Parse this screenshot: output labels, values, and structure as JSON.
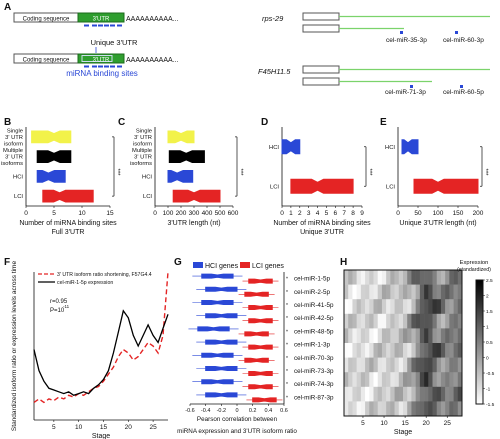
{
  "panels": {
    "A": {
      "letter": "A",
      "coding_sequence": "Coding sequence",
      "utr": "3'UTR",
      "polyA": "AAAAAAAAAA...",
      "unique_utr": "Unique 3'UTR",
      "binding_sites": "miRNA binding sites",
      "genes": [
        "rps-29",
        "F45H11.5"
      ],
      "mirnas": [
        "cel-miR-35-3p",
        "cel-miR-60-3p",
        "cel-miR-71-3p",
        "cel-miR-60-5p"
      ]
    },
    "B": {
      "letter": "B",
      "categories": [
        "Single 3' UTR isoform",
        "Multiple 3' UTR isoforms",
        "HCI",
        "LCI"
      ],
      "xticks": [
        "0",
        "5",
        "10",
        "15"
      ],
      "xlabel": "Number of miRNA binding sites",
      "xlabel2": "Full 3'UTR",
      "sig": "***"
    },
    "C": {
      "letter": "C",
      "categories": [
        "Single 3' UTR isoform",
        "Multiple 3' UTR isoforms",
        "HCI",
        "LCI"
      ],
      "xticks": [
        "0",
        "100",
        "200",
        "300",
        "400",
        "500",
        "600"
      ],
      "xlabel": "3'UTR length (nt)",
      "sig": "***"
    },
    "D": {
      "letter": "D",
      "categories": [
        "HCI",
        "LCI"
      ],
      "xticks": [
        "0",
        "1",
        "2",
        "3",
        "4",
        "5",
        "6",
        "7",
        "8",
        "9"
      ],
      "xlabel": "Number of miRNA binding sites",
      "xlabel2": "Unique 3'UTR",
      "sig": "***"
    },
    "E": {
      "letter": "E",
      "categories": [
        "HCI",
        "LCI"
      ],
      "xticks": [
        "0",
        "50",
        "100",
        "150",
        "200"
      ],
      "xlabel": "Unique 3'UTR length (nt)",
      "sig": "***"
    },
    "F": {
      "letter": "F",
      "legend1": "3' UTR isoform ratio shortening, F57G4.4",
      "legend2": "cel-miR-1-5p expression",
      "stat_r": "r=0.95",
      "stat_p": "P=10",
      "stat_p_exp": "-11",
      "ylabel": "Standardized isoform ratio or expression levels across time",
      "xlabel": "Stage",
      "xticks": [
        "5",
        "10",
        "15",
        "20",
        "25"
      ]
    },
    "G": {
      "letter": "G",
      "legend_hci": "HCI genes",
      "legend_lci": "LCI genes",
      "xlabel": "Pearson correlation between miRNA expression and 3'UTR isoform ratio",
      "xticks": [
        "-0.6",
        "-0.4",
        "-0.2",
        "0",
        "0.2",
        "0.4",
        "0.6"
      ],
      "mirnas": [
        "cel-miR-1-5p",
        "cel-miR-2-5p",
        "cel-miR-41-5p",
        "cel-miR-42-5p",
        "cel-miR-48-5p",
        "cel-miR-1-3p",
        "cel-miR-70-3p",
        "cel-miR-73-3p",
        "cel-miR-74-3p",
        "cel-miR-87-3p"
      ],
      "sig": "*"
    },
    "H": {
      "letter": "H",
      "legend_title": "Expression",
      "legend_sub": "(standardized)",
      "xlabel": "Stage",
      "xticks": [
        "5",
        "10",
        "15",
        "20",
        "25"
      ],
      "cb_ticks": [
        "2.5",
        "2",
        "1.5",
        "1",
        "0.5",
        "0",
        "-0.5",
        "-1",
        "-1.5"
      ]
    }
  },
  "chart_data": [
    {
      "panel": "B",
      "type": "box",
      "categories": [
        "Single 3' UTR isoform",
        "Multiple 3' UTR isoforms",
        "HCI",
        "LCI"
      ],
      "medians": [
        5,
        5,
        4,
        6
      ],
      "q1": [
        1,
        2,
        2,
        3
      ],
      "q3": [
        8,
        8,
        7,
        12
      ],
      "colors": [
        "#f2f24a",
        "#000000",
        "#2a48d6",
        "#e42424"
      ],
      "xlim": [
        0,
        15
      ]
    },
    {
      "panel": "C",
      "type": "box",
      "categories": [
        "Single 3' UTR isoform",
        "Multiple 3' UTR isoforms",
        "HCI",
        "LCI"
      ],
      "medians": [
        200,
        240,
        170,
        300
      ],
      "q1": [
        100,
        110,
        100,
        140
      ],
      "q3": [
        300,
        380,
        290,
        500
      ],
      "colors": [
        "#f2f24a",
        "#000000",
        "#2a48d6",
        "#e42424"
      ],
      "xlim": [
        0,
        600
      ]
    },
    {
      "panel": "D",
      "type": "box",
      "categories": [
        "HCI",
        "LCI"
      ],
      "medians": [
        1,
        4
      ],
      "q1": [
        0,
        1
      ],
      "q3": [
        2,
        8
      ],
      "colors": [
        "#2a48d6",
        "#e42424"
      ],
      "xlim": [
        0,
        9
      ]
    },
    {
      "panel": "E",
      "type": "box",
      "categories": [
        "HCI",
        "LCI"
      ],
      "medians": [
        25,
        100
      ],
      "q1": [
        10,
        40
      ],
      "q3": [
        50,
        200
      ],
      "colors": [
        "#2a48d6",
        "#e42424"
      ],
      "xlim": [
        0,
        200
      ]
    },
    {
      "panel": "F",
      "type": "line",
      "x": [
        1,
        2,
        3,
        4,
        5,
        6,
        7,
        8,
        9,
        10,
        11,
        12,
        13,
        14,
        15,
        16,
        17,
        18,
        19,
        20,
        21,
        22,
        23,
        24,
        25,
        26,
        27,
        28
      ],
      "series": [
        {
          "name": "3' UTR isoform ratio shortening, F57G4.4",
          "color": "#e42424",
          "dash": true,
          "values": [
            -0.7,
            -0.6,
            -0.7,
            -0.6,
            -0.65,
            -0.55,
            -0.6,
            -0.5,
            -0.55,
            -0.45,
            -0.5,
            -0.4,
            -0.3,
            -0.25,
            -0.1,
            0.1,
            0.3,
            0.6,
            0.8,
            0.7,
            0.5,
            0.6,
            0.8,
            1.0,
            0.9,
            0.7,
            1.2,
            3.0
          ]
        },
        {
          "name": "cel-miR-1-5p expression",
          "color": "#000000",
          "dash": false,
          "values": [
            0.8,
            0.2,
            -0.1,
            -0.3,
            -0.35,
            -0.4,
            -0.45,
            -0.4,
            -0.5,
            -0.45,
            -0.4,
            -0.45,
            -0.3,
            -0.2,
            -0.05,
            0.2,
            0.7,
            1.3,
            1.9,
            1.7,
            1.2,
            0.9,
            1.2,
            1.5,
            1.2,
            1.0,
            1.4,
            1.8
          ]
        }
      ],
      "ylim": [
        -1.2,
        3.0
      ]
    },
    {
      "panel": "G",
      "type": "box",
      "categories": [
        "cel-miR-1-5p",
        "cel-miR-2-5p",
        "cel-miR-41-5p",
        "cel-miR-42-5p",
        "cel-miR-48-5p",
        "cel-miR-1-3p",
        "cel-miR-70-3p",
        "cel-miR-73-3p",
        "cel-miR-74-3p",
        "cel-miR-87-3p"
      ],
      "series": [
        {
          "name": "HCI genes",
          "color": "#2a48d6",
          "medians": [
            -0.25,
            -0.2,
            -0.25,
            -0.2,
            -0.3,
            -0.2,
            -0.25,
            -0.2,
            -0.25,
            -0.2
          ],
          "q1": [
            -0.45,
            -0.4,
            -0.45,
            -0.4,
            -0.5,
            -0.4,
            -0.45,
            -0.4,
            -0.45,
            -0.4
          ],
          "q3": [
            -0.05,
            0.0,
            -0.05,
            0.0,
            -0.1,
            0.0,
            -0.05,
            0.0,
            -0.05,
            0.0
          ]
        },
        {
          "name": "LCI genes",
          "color": "#e42424",
          "medians": [
            0.3,
            0.25,
            0.3,
            0.3,
            0.25,
            0.3,
            0.25,
            0.3,
            0.3,
            0.35
          ],
          "q1": [
            0.15,
            0.1,
            0.15,
            0.15,
            0.1,
            0.15,
            0.1,
            0.15,
            0.15,
            0.2
          ],
          "q3": [
            0.45,
            0.4,
            0.45,
            0.45,
            0.4,
            0.45,
            0.4,
            0.45,
            0.45,
            0.5
          ]
        }
      ],
      "xlim": [
        -0.6,
        0.6
      ]
    },
    {
      "panel": "H",
      "type": "heatmap",
      "rows": [
        "cel-miR-1-5p",
        "cel-miR-2-5p",
        "cel-miR-41-5p",
        "cel-miR-42-5p",
        "cel-miR-48-5p",
        "cel-miR-1-3p",
        "cel-miR-70-3p",
        "cel-miR-73-3p",
        "cel-miR-74-3p",
        "cel-miR-87-3p"
      ],
      "columns": 28,
      "zlim": [
        -1.5,
        2.5
      ]
    }
  ]
}
